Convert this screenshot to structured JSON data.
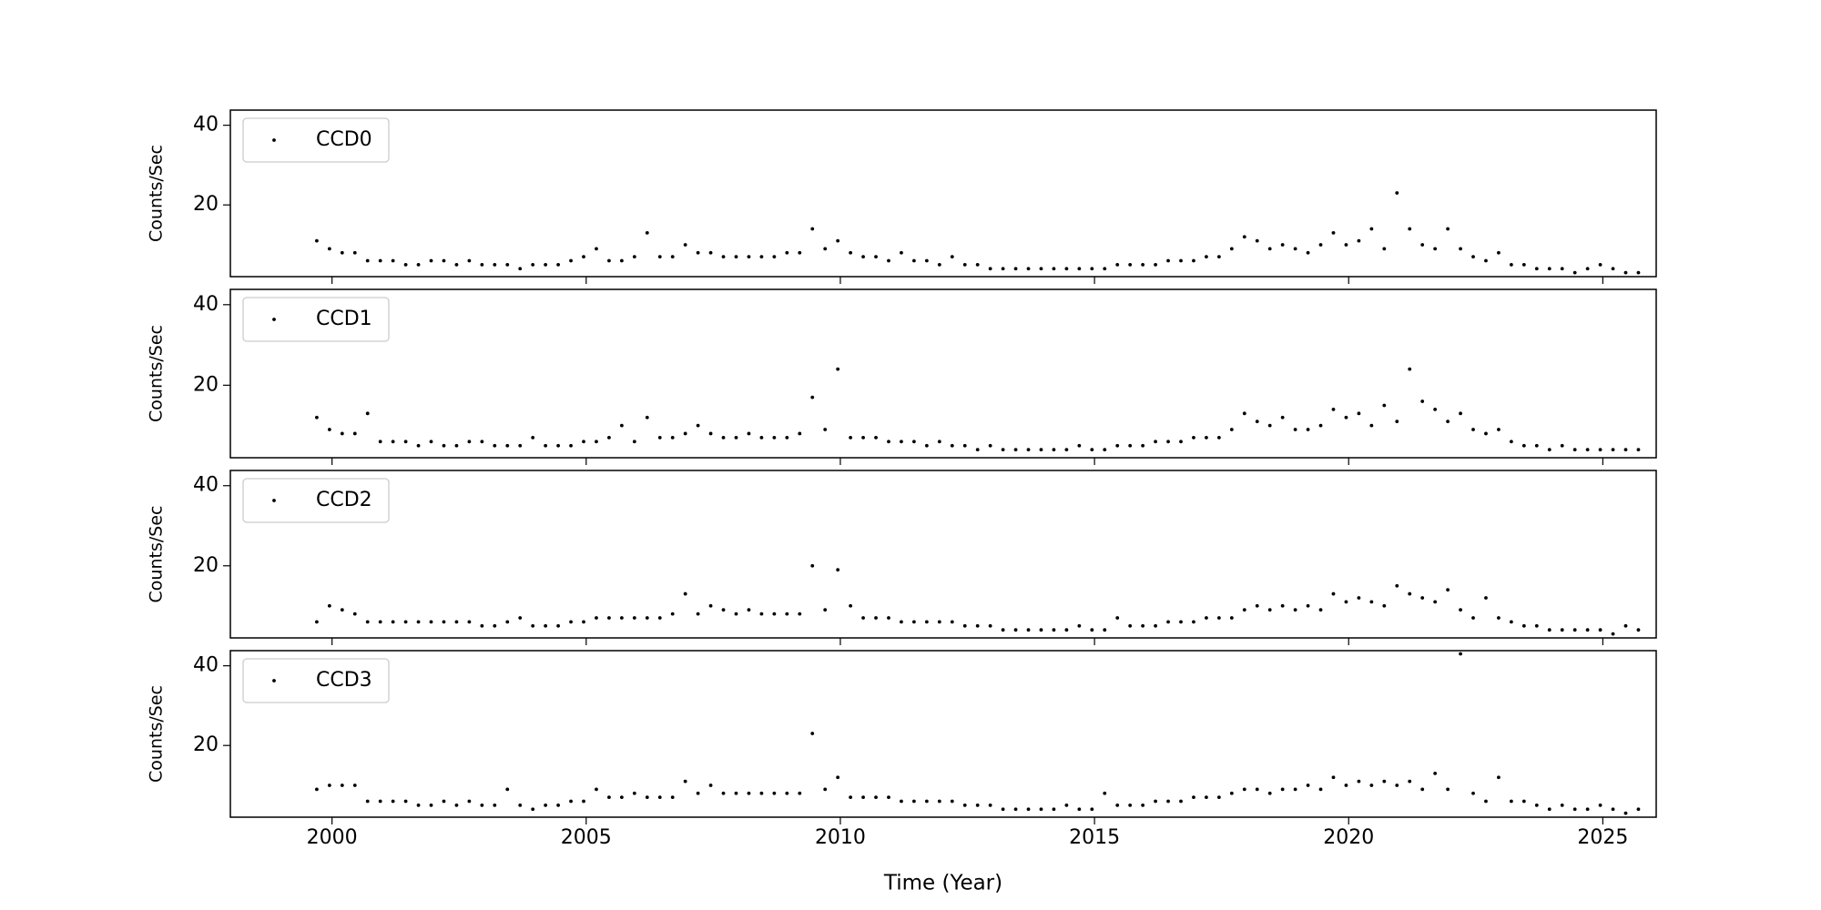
{
  "chart_data": [
    {
      "type": "scatter",
      "ylabel": "Counts/Sec",
      "legend": "upper left",
      "xlim": [
        1998,
        2026.05
      ],
      "ylim": [
        2,
        43.8
      ],
      "xticks": [
        2000,
        2005,
        2010,
        2015,
        2020,
        2025
      ],
      "yticks": [
        20,
        40
      ],
      "x": [
        1999.7,
        1999.95,
        2000.2,
        2000.45,
        2000.7,
        2000.95,
        2001.2,
        2001.45,
        2001.7,
        2001.95,
        2002.2,
        2002.45,
        2002.7,
        2002.95,
        2003.2,
        2003.45,
        2003.7,
        2003.95,
        2004.2,
        2004.45,
        2004.7,
        2004.95,
        2005.2,
        2005.45,
        2005.7,
        2005.95,
        2006.2,
        2006.45,
        2006.7,
        2006.95,
        2007.2,
        2007.45,
        2007.7,
        2007.95,
        2008.2,
        2008.45,
        2008.7,
        2008.95,
        2009.2,
        2009.45,
        2009.7,
        2009.95,
        2010.2,
        2010.45,
        2010.7,
        2010.95,
        2011.2,
        2011.45,
        2011.7,
        2011.95,
        2012.2,
        2012.45,
        2012.7,
        2012.95,
        2013.2,
        2013.45,
        2013.7,
        2013.95,
        2014.2,
        2014.45,
        2014.7,
        2014.95,
        2015.2,
        2015.45,
        2015.7,
        2015.95,
        2016.2,
        2016.45,
        2016.7,
        2016.95,
        2017.2,
        2017.45,
        2017.7,
        2017.95,
        2018.2,
        2018.45,
        2018.7,
        2018.95,
        2019.2,
        2019.45,
        2019.7,
        2019.95,
        2020.2,
        2020.45,
        2020.7,
        2020.95,
        2021.2,
        2021.45,
        2021.7,
        2021.95,
        2022.2,
        2022.45,
        2022.7,
        2022.95,
        2023.2,
        2023.45,
        2023.7,
        2023.95,
        2024.2,
        2024.45,
        2024.7,
        2024.95,
        2025.2,
        2025.45,
        2025.7
      ],
      "series": [
        {
          "name": "CCD0",
          "color": "#000000",
          "values": [
            11,
            9,
            8,
            8,
            6,
            6,
            6,
            5,
            5,
            6,
            6,
            5,
            6,
            5,
            5,
            5,
            4,
            5,
            5,
            5,
            6,
            7,
            9,
            6,
            6,
            7,
            13,
            7,
            7,
            10,
            8,
            8,
            7,
            7,
            7,
            7,
            7,
            8,
            8,
            14,
            9,
            11,
            8,
            7,
            7,
            6,
            8,
            6,
            6,
            5,
            7,
            5,
            5,
            4,
            4,
            4,
            4,
            4,
            4,
            4,
            4,
            4,
            4,
            5,
            5,
            5,
            5,
            6,
            6,
            6,
            7,
            7,
            9,
            12,
            11,
            9,
            10,
            9,
            8,
            10,
            13,
            10,
            11,
            14,
            9,
            23,
            14,
            10,
            9,
            14,
            9,
            7,
            6,
            8,
            5,
            5,
            4,
            4,
            4,
            3,
            4,
            5,
            4,
            3,
            3
          ]
        }
      ]
    },
    {
      "type": "scatter",
      "ylabel": "Counts/Sec",
      "legend": "upper left",
      "xlim": [
        1998,
        2026.05
      ],
      "ylim": [
        2,
        43.8
      ],
      "xticks": [
        2000,
        2005,
        2010,
        2015,
        2020,
        2025
      ],
      "yticks": [
        20,
        40
      ],
      "x": [
        1999.7,
        1999.95,
        2000.2,
        2000.45,
        2000.7,
        2000.95,
        2001.2,
        2001.45,
        2001.7,
        2001.95,
        2002.2,
        2002.45,
        2002.7,
        2002.95,
        2003.2,
        2003.45,
        2003.7,
        2003.95,
        2004.2,
        2004.45,
        2004.7,
        2004.95,
        2005.2,
        2005.45,
        2005.7,
        2005.95,
        2006.2,
        2006.45,
        2006.7,
        2006.95,
        2007.2,
        2007.45,
        2007.7,
        2007.95,
        2008.2,
        2008.45,
        2008.7,
        2008.95,
        2009.2,
        2009.45,
        2009.7,
        2009.95,
        2010.2,
        2010.45,
        2010.7,
        2010.95,
        2011.2,
        2011.45,
        2011.7,
        2011.95,
        2012.2,
        2012.45,
        2012.7,
        2012.95,
        2013.2,
        2013.45,
        2013.7,
        2013.95,
        2014.2,
        2014.45,
        2014.7,
        2014.95,
        2015.2,
        2015.45,
        2015.7,
        2015.95,
        2016.2,
        2016.45,
        2016.7,
        2016.95,
        2017.2,
        2017.45,
        2017.7,
        2017.95,
        2018.2,
        2018.45,
        2018.7,
        2018.95,
        2019.2,
        2019.45,
        2019.7,
        2019.95,
        2020.2,
        2020.45,
        2020.7,
        2020.95,
        2021.2,
        2021.45,
        2021.7,
        2021.95,
        2022.2,
        2022.45,
        2022.7,
        2022.95,
        2023.2,
        2023.45,
        2023.7,
        2023.95,
        2024.2,
        2024.45,
        2024.7,
        2024.95,
        2025.2,
        2025.45,
        2025.7
      ],
      "series": [
        {
          "name": "CCD1",
          "color": "#000000",
          "values": [
            12,
            9,
            8,
            8,
            13,
            6,
            6,
            6,
            5,
            6,
            5,
            5,
            6,
            6,
            5,
            5,
            5,
            7,
            5,
            5,
            5,
            6,
            6,
            7,
            10,
            6,
            12,
            7,
            7,
            8,
            10,
            8,
            7,
            7,
            8,
            7,
            7,
            7,
            8,
            17,
            9,
            24,
            7,
            7,
            7,
            6,
            6,
            6,
            5,
            6,
            5,
            5,
            4,
            5,
            4,
            4,
            4,
            4,
            4,
            4,
            5,
            4,
            4,
            5,
            5,
            5,
            6,
            6,
            6,
            7,
            7,
            7,
            9,
            13,
            11,
            10,
            12,
            9,
            9,
            10,
            14,
            12,
            13,
            10,
            15,
            11,
            24,
            16,
            14,
            11,
            13,
            9,
            8,
            9,
            6,
            5,
            5,
            4,
            5,
            4,
            4,
            4,
            4,
            4,
            4
          ]
        }
      ]
    },
    {
      "type": "scatter",
      "ylabel": "Counts/Sec",
      "legend": "upper left",
      "xlim": [
        1998,
        2026.05
      ],
      "ylim": [
        2,
        43.8
      ],
      "xticks": [
        2000,
        2005,
        2010,
        2015,
        2020,
        2025
      ],
      "yticks": [
        20,
        40
      ],
      "x": [
        1999.7,
        1999.95,
        2000.2,
        2000.45,
        2000.7,
        2000.95,
        2001.2,
        2001.45,
        2001.7,
        2001.95,
        2002.2,
        2002.45,
        2002.7,
        2002.95,
        2003.2,
        2003.45,
        2003.7,
        2003.95,
        2004.2,
        2004.45,
        2004.7,
        2004.95,
        2005.2,
        2005.45,
        2005.7,
        2005.95,
        2006.2,
        2006.45,
        2006.7,
        2006.95,
        2007.2,
        2007.45,
        2007.7,
        2007.95,
        2008.2,
        2008.45,
        2008.7,
        2008.95,
        2009.2,
        2009.45,
        2009.7,
        2009.95,
        2010.2,
        2010.45,
        2010.7,
        2010.95,
        2011.2,
        2011.45,
        2011.7,
        2011.95,
        2012.2,
        2012.45,
        2012.7,
        2012.95,
        2013.2,
        2013.45,
        2013.7,
        2013.95,
        2014.2,
        2014.45,
        2014.7,
        2014.95,
        2015.2,
        2015.45,
        2015.7,
        2015.95,
        2016.2,
        2016.45,
        2016.7,
        2016.95,
        2017.2,
        2017.45,
        2017.7,
        2017.95,
        2018.2,
        2018.45,
        2018.7,
        2018.95,
        2019.2,
        2019.45,
        2019.7,
        2019.95,
        2020.2,
        2020.45,
        2020.7,
        2020.95,
        2021.2,
        2021.45,
        2021.7,
        2021.95,
        2022.2,
        2022.45,
        2022.7,
        2022.95,
        2023.2,
        2023.45,
        2023.7,
        2023.95,
        2024.2,
        2024.45,
        2024.7,
        2024.95,
        2025.2,
        2025.45,
        2025.7
      ],
      "series": [
        {
          "name": "CCD2",
          "color": "#000000",
          "values": [
            6,
            10,
            9,
            8,
            6,
            6,
            6,
            6,
            6,
            6,
            6,
            6,
            6,
            5,
            5,
            6,
            7,
            5,
            5,
            5,
            6,
            6,
            7,
            7,
            7,
            7,
            7,
            7,
            8,
            13,
            8,
            10,
            9,
            8,
            9,
            8,
            8,
            8,
            8,
            20,
            9,
            19,
            10,
            7,
            7,
            7,
            6,
            6,
            6,
            6,
            6,
            5,
            5,
            5,
            4,
            4,
            4,
            4,
            4,
            4,
            5,
            4,
            4,
            7,
            5,
            5,
            5,
            6,
            6,
            6,
            7,
            7,
            7,
            9,
            10,
            9,
            10,
            9,
            10,
            9,
            13,
            11,
            12,
            11,
            10,
            15,
            13,
            12,
            11,
            14,
            9,
            7,
            12,
            7,
            6,
            5,
            5,
            4,
            4,
            4,
            4,
            4,
            3,
            5,
            4
          ]
        }
      ]
    },
    {
      "type": "scatter",
      "ylabel": "Counts/Sec",
      "xlabel": "Time (Year)",
      "legend": "upper left",
      "xlim": [
        1998,
        2026.05
      ],
      "ylim": [
        2,
        43.8
      ],
      "xticks": [
        2000,
        2005,
        2010,
        2015,
        2020,
        2025
      ],
      "yticks": [
        20,
        40
      ],
      "x": [
        1999.7,
        1999.95,
        2000.2,
        2000.45,
        2000.7,
        2000.95,
        2001.2,
        2001.45,
        2001.7,
        2001.95,
        2002.2,
        2002.45,
        2002.7,
        2002.95,
        2003.2,
        2003.45,
        2003.7,
        2003.95,
        2004.2,
        2004.45,
        2004.7,
        2004.95,
        2005.2,
        2005.45,
        2005.7,
        2005.95,
        2006.2,
        2006.45,
        2006.7,
        2006.95,
        2007.2,
        2007.45,
        2007.7,
        2007.95,
        2008.2,
        2008.45,
        2008.7,
        2008.95,
        2009.2,
        2009.45,
        2009.7,
        2009.95,
        2010.2,
        2010.45,
        2010.7,
        2010.95,
        2011.2,
        2011.45,
        2011.7,
        2011.95,
        2012.2,
        2012.45,
        2012.7,
        2012.95,
        2013.2,
        2013.45,
        2013.7,
        2013.95,
        2014.2,
        2014.45,
        2014.7,
        2014.95,
        2015.2,
        2015.45,
        2015.7,
        2015.95,
        2016.2,
        2016.45,
        2016.7,
        2016.95,
        2017.2,
        2017.45,
        2017.7,
        2017.95,
        2018.2,
        2018.45,
        2018.7,
        2018.95,
        2019.2,
        2019.45,
        2019.7,
        2019.95,
        2020.2,
        2020.45,
        2020.7,
        2020.95,
        2021.2,
        2021.45,
        2021.7,
        2021.95,
        2022.2,
        2022.45,
        2022.7,
        2022.95,
        2023.2,
        2023.45,
        2023.7,
        2023.95,
        2024.2,
        2024.45,
        2024.7,
        2024.95,
        2025.2,
        2025.45,
        2025.7
      ],
      "series": [
        {
          "name": "CCD3",
          "color": "#000000",
          "values": [
            9,
            10,
            10,
            10,
            6,
            6,
            6,
            6,
            5,
            5,
            6,
            5,
            6,
            5,
            5,
            9,
            5,
            4,
            5,
            5,
            6,
            6,
            9,
            7,
            7,
            8,
            7,
            7,
            7,
            11,
            8,
            10,
            8,
            8,
            8,
            8,
            8,
            8,
            8,
            23,
            9,
            12,
            7,
            7,
            7,
            7,
            6,
            6,
            6,
            6,
            6,
            5,
            5,
            5,
            4,
            4,
            4,
            4,
            4,
            5,
            4,
            4,
            8,
            5,
            5,
            5,
            6,
            6,
            6,
            7,
            7,
            7,
            8,
            9,
            9,
            8,
            9,
            9,
            10,
            9,
            12,
            10,
            11,
            10,
            11,
            10,
            11,
            9,
            13,
            9,
            43,
            8,
            6,
            12,
            6,
            6,
            5,
            4,
            5,
            4,
            4,
            5,
            4,
            3,
            4
          ]
        }
      ]
    }
  ]
}
